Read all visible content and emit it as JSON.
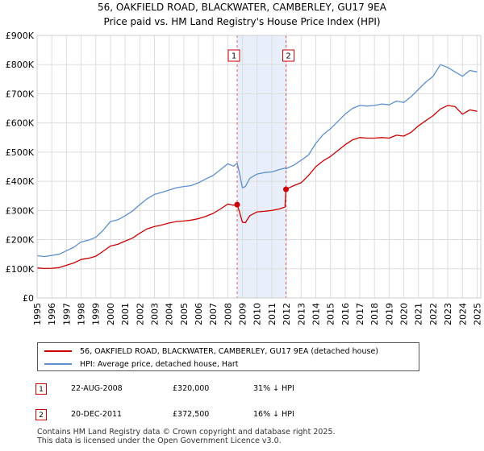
{
  "header": {
    "title": "56, OAKFIELD ROAD, BLACKWATER, CAMBERLEY, GU17 9EA",
    "subtitle": "Price paid vs. HM Land Registry's House Price Index (HPI)"
  },
  "chart_data": {
    "type": "line",
    "title": "56, OAKFIELD ROAD, BLACKWATER, CAMBERLEY, GU17 9EA",
    "subtitle": "Price paid vs. HM Land Registry's House Price Index (HPI)",
    "xlim": [
      1995,
      2025.25
    ],
    "ylim": [
      0,
      900000
    ],
    "y_ticks": [
      0,
      100000,
      200000,
      300000,
      400000,
      500000,
      600000,
      700000,
      800000,
      900000
    ],
    "y_tick_labels": [
      "£0",
      "£100K",
      "£200K",
      "£300K",
      "£400K",
      "£500K",
      "£600K",
      "£700K",
      "£800K",
      "£900K"
    ],
    "x_ticks": [
      1995,
      1996,
      1997,
      1998,
      1999,
      2000,
      2001,
      2002,
      2003,
      2004,
      2005,
      2006,
      2007,
      2008,
      2009,
      2010,
      2011,
      2012,
      2013,
      2014,
      2015,
      2016,
      2017,
      2018,
      2019,
      2020,
      2021,
      2022,
      2023,
      2024,
      2025
    ],
    "x_tick_labels": [
      "1995",
      "1996",
      "1997",
      "1998",
      "1999",
      "2000",
      "2001",
      "2002",
      "2003",
      "2004",
      "2005",
      "2006",
      "2007",
      "2008",
      "2009",
      "2010",
      "2011",
      "2012",
      "2013",
      "2014",
      "2015",
      "2016",
      "2017",
      "2018",
      "2019",
      "2020",
      "2021",
      "2022",
      "2023",
      "2024",
      "2025"
    ],
    "grid": true,
    "shaded_region": {
      "x_start": 2008.64,
      "x_end": 2011.97
    },
    "markers": [
      {
        "label": "1",
        "x": 2008.64,
        "y": 320000
      },
      {
        "label": "2",
        "x": 2011.97,
        "y": 372500
      }
    ],
    "series": [
      {
        "name": "56, OAKFIELD ROAD, BLACKWATER, CAMBERLEY, GU17 9EA (detached house)",
        "color": "#cc0000",
        "x": [
          1995.0,
          1995.5,
          1996.0,
          1996.5,
          1997.0,
          1997.5,
          1998.0,
          1998.5,
          1999.0,
          1999.5,
          2000.0,
          2000.5,
          2001.0,
          2001.5,
          2002.0,
          2002.5,
          2003.0,
          2003.5,
          2004.0,
          2004.5,
          2005.0,
          2005.5,
          2006.0,
          2006.5,
          2007.0,
          2007.5,
          2008.0,
          2008.4,
          2008.64,
          2008.8,
          2009.0,
          2009.2,
          2009.5,
          2010.0,
          2010.5,
          2011.0,
          2011.5,
          2011.9,
          2011.97,
          2012.1,
          2012.5,
          2013.0,
          2013.5,
          2014.0,
          2014.5,
          2015.0,
          2015.5,
          2016.0,
          2016.5,
          2017.0,
          2017.5,
          2018.0,
          2018.5,
          2019.0,
          2019.5,
          2020.0,
          2020.5,
          2021.0,
          2021.5,
          2022.0,
          2022.5,
          2023.0,
          2023.5,
          2024.0,
          2024.5,
          2025.0
        ],
        "y": [
          103000,
          101000,
          102000,
          104000,
          112000,
          120000,
          132000,
          136000,
          143000,
          160000,
          178000,
          184000,
          195000,
          205000,
          222000,
          237000,
          245000,
          250000,
          257000,
          262000,
          264000,
          267000,
          272000,
          280000,
          290000,
          305000,
          322000,
          318000,
          320000,
          295000,
          260000,
          258000,
          282000,
          295000,
          297000,
          300000,
          305000,
          312000,
          372500,
          376000,
          385000,
          395000,
          420000,
          450000,
          470000,
          485000,
          505000,
          525000,
          542000,
          550000,
          548000,
          548000,
          550000,
          548000,
          558000,
          555000,
          568000,
          590000,
          608000,
          625000,
          648000,
          660000,
          656000,
          630000,
          645000,
          640000
        ]
      },
      {
        "name": "HPI: Average price, detached house, Hart",
        "color": "#5b8fd0",
        "x": [
          1995.0,
          1995.5,
          1996.0,
          1996.5,
          1997.0,
          1997.5,
          1998.0,
          1998.5,
          1999.0,
          1999.5,
          2000.0,
          2000.5,
          2001.0,
          2001.5,
          2002.0,
          2002.5,
          2003.0,
          2003.5,
          2004.0,
          2004.5,
          2005.0,
          2005.5,
          2006.0,
          2006.5,
          2007.0,
          2007.5,
          2008.0,
          2008.4,
          2008.64,
          2008.8,
          2009.0,
          2009.2,
          2009.5,
          2010.0,
          2010.5,
          2011.0,
          2011.5,
          2011.9,
          2011.97,
          2012.1,
          2012.5,
          2013.0,
          2013.5,
          2014.0,
          2014.5,
          2015.0,
          2015.5,
          2016.0,
          2016.5,
          2017.0,
          2017.5,
          2018.0,
          2018.5,
          2019.0,
          2019.5,
          2020.0,
          2020.5,
          2021.0,
          2021.5,
          2022.0,
          2022.5,
          2023.0,
          2023.5,
          2024.0,
          2024.5,
          2025.0
        ],
        "y": [
          145000,
          142000,
          146000,
          150000,
          162000,
          174000,
          192000,
          198000,
          208000,
          232000,
          262000,
          268000,
          282000,
          298000,
          320000,
          340000,
          355000,
          362000,
          370000,
          378000,
          382000,
          385000,
          395000,
          408000,
          420000,
          440000,
          460000,
          452000,
          462000,
          428000,
          378000,
          382000,
          410000,
          425000,
          430000,
          432000,
          440000,
          445000,
          443000,
          446000,
          455000,
          472000,
          490000,
          530000,
          560000,
          580000,
          605000,
          630000,
          650000,
          660000,
          658000,
          660000,
          665000,
          662000,
          675000,
          670000,
          690000,
          715000,
          740000,
          760000,
          800000,
          790000,
          775000,
          760000,
          780000,
          775000
        ]
      }
    ]
  },
  "legend": {
    "items": [
      {
        "label": "56, OAKFIELD ROAD, BLACKWATER, CAMBERLEY, GU17 9EA (detached house)",
        "color": "#cc0000"
      },
      {
        "label": "HPI: Average price, detached house, Hart",
        "color": "#5b8fd0"
      }
    ]
  },
  "sales": [
    {
      "num": "1",
      "date": "22-AUG-2008",
      "price": "£320,000",
      "hpi": "31% ↓ HPI"
    },
    {
      "num": "2",
      "date": "20-DEC-2011",
      "price": "£372,500",
      "hpi": "16% ↓ HPI"
    }
  ],
  "footer": {
    "line1": "Contains HM Land Registry data © Crown copyright and database right 2025.",
    "line2": "This data is licensed under the Open Government Licence v3.0."
  }
}
